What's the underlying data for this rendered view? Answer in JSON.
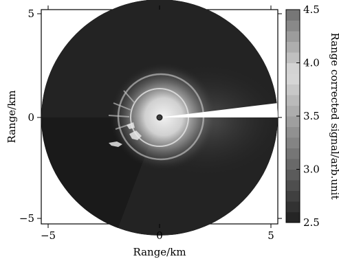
{
  "chart_data": {
    "type": "heatmap",
    "title": "",
    "xlabel": "Range/km",
    "ylabel": "Range/km",
    "colorbar_label": "Range corrected signal/arb.unit",
    "xlim": [
      -5.3,
      5.3
    ],
    "ylim": [
      -5.3,
      5.3
    ],
    "xticks": [
      -5,
      0,
      5
    ],
    "yticks": [
      -5,
      0,
      5
    ],
    "xtick_labels": [
      "−5",
      "0",
      "5"
    ],
    "ytick_labels": [
      "−5",
      "0",
      "5"
    ],
    "colorbar_range": [
      2.5,
      4.5
    ],
    "colorbar_ticks": [
      2.5,
      3.0,
      3.5,
      4.0,
      4.5
    ],
    "colorbar_tick_labels": [
      "2.5",
      "3.0",
      "3.5",
      "4.0",
      "4.5"
    ],
    "colorbar_levels": 20,
    "colormap": "gray",
    "scan_radius_km": 5.3,
    "background_level": 2.6,
    "features": [
      {
        "type": "point",
        "x": 0,
        "y": 0,
        "level": 2.5
      },
      {
        "type": "ring",
        "cx": 0,
        "cy": 0,
        "r_inner": 0.35,
        "r_outer": 1.6,
        "level": 4.3
      },
      {
        "type": "ring",
        "cx": 0,
        "cy": 0,
        "r_inner": 1.6,
        "r_outer": 3.0,
        "level": 3.1
      },
      {
        "type": "sector_blank",
        "angle_start_deg": 0,
        "angle_end_deg": 8,
        "level": "no data"
      }
    ],
    "grid": false,
    "legend": "colorbar-right"
  }
}
